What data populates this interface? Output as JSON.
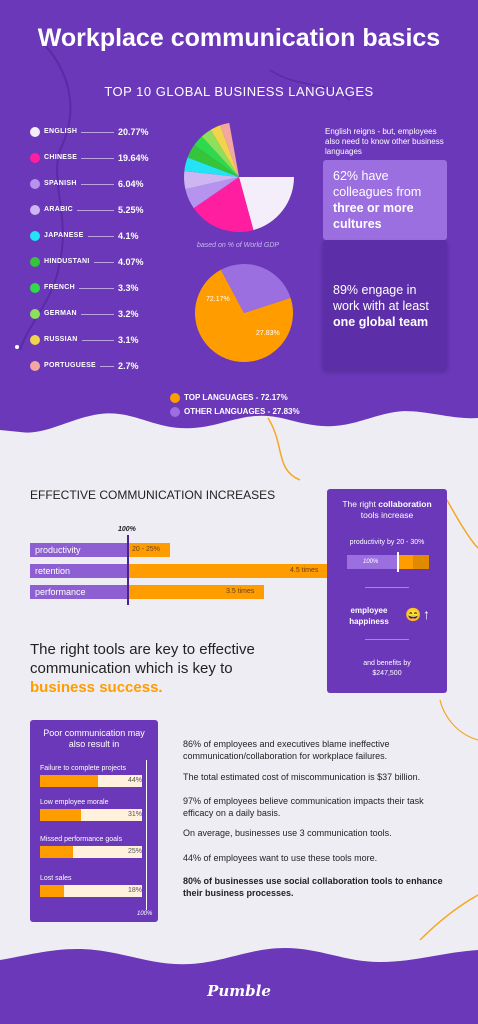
{
  "header": {
    "title": "Workplace communication basics",
    "subtitle": "TOP 10 GLOBAL BUSINESS LANGUAGES"
  },
  "colors": {
    "purple": "#6a38b9",
    "light_purple": "#9b6fe0",
    "orange": "#ff9d00",
    "background": "#efedf4"
  },
  "languages": [
    {
      "name": "ENGLISH",
      "value": "20.77%",
      "pct": 20.77,
      "color": "#f3eef9"
    },
    {
      "name": "CHINESE",
      "value": "19.64%",
      "pct": 19.64,
      "color": "#ff1ea0"
    },
    {
      "name": "SPANISH",
      "value": "6.04%",
      "pct": 6.04,
      "color": "#b693ef"
    },
    {
      "name": "ARABIC",
      "value": "5.25%",
      "pct": 5.25,
      "color": "#cdb6f2"
    },
    {
      "name": "JAPANESE",
      "value": "4.1%",
      "pct": 4.1,
      "color": "#24e3f4"
    },
    {
      "name": "HINDUSTANI",
      "value": "4.07%",
      "pct": 4.07,
      "color": "#35c43a"
    },
    {
      "name": "FRENCH",
      "value": "3.3%",
      "pct": 3.3,
      "color": "#2fd94c"
    },
    {
      "name": "GERMAN",
      "value": "3.2%",
      "pct": 3.2,
      "color": "#8ee05a"
    },
    {
      "name": "RUSSIAN",
      "value": "3.1%",
      "pct": 3.1,
      "color": "#f1d44c"
    },
    {
      "name": "PORTUGUESE",
      "value": "2.7%",
      "pct": 2.7,
      "color": "#f4a7a0"
    }
  ],
  "pie_caption": "based on % of World GDP",
  "pie2": {
    "top_label": "72.17%",
    "other_label": "27.83%",
    "legend_top": "TOP LANGUAGES - 72.17%",
    "legend_other": "OTHER LANGUAGES - 27.83%"
  },
  "english_note": "English reigns - but, employees also need to know other business languages",
  "stat1": {
    "pre": "62% have colleagues from ",
    "bold": "three or more cultures"
  },
  "stat2": {
    "pre": "89% engage in work with at least ",
    "bold": "one global team"
  },
  "effective": {
    "heading": "EFFECTIVE COMMUNICATION INCREASES",
    "marker": "100%",
    "rows": [
      {
        "label": "productivity",
        "value_text": "20 - 25%",
        "value": 1.225
      },
      {
        "label": "retention",
        "value_text": "4.5 times",
        "value": 4.5
      },
      {
        "label": "performance",
        "value_text": "3.5 times",
        "value": 3.5
      }
    ]
  },
  "collab": {
    "title_pre": "The right ",
    "title_bold": "collaboration",
    "title_line2": "tools increase",
    "productivity_label": "productivity by 20 - 30%",
    "bar_marker": "100%",
    "happiness": "employee happiness",
    "emoji": "😄",
    "arrow": "↑",
    "benefits": "and benefits by $247,500"
  },
  "tagline": {
    "pre": "The right tools are key to effective communication which is key to ",
    "highlight": "business success."
  },
  "poor": {
    "title": "Poor communication may also result in",
    "rows": [
      {
        "label": "Failure to complete projects",
        "value_text": "44%",
        "pct": 44
      },
      {
        "label": "Low employee morale",
        "value_text": "31%",
        "pct": 31
      },
      {
        "label": "Missed performance goals",
        "value_text": "25%",
        "pct": 25
      },
      {
        "label": "Lost sales",
        "value_text": "18%",
        "pct": 18
      }
    ],
    "axis_max": "100%"
  },
  "facts": [
    "86% of employees and executives blame ineffective communication/collaboration for workplace failures.",
    "The total estimated cost of miscommunication is $37 billion.",
    "97% of employees believe communication impacts their task efficacy on a daily basis.",
    "On average, businesses use 3 communication tools.",
    "44% of employees want to use these tools more."
  ],
  "fact_bold": "80% of businesses use social collaboration tools to enhance their business processes.",
  "footer": {
    "logo": "Pumble"
  },
  "chart_data": [
    {
      "type": "pie",
      "title": "TOP 10 GLOBAL BUSINESS LANGUAGES",
      "caption": "based on % of World GDP",
      "categories": [
        "ENGLISH",
        "CHINESE",
        "SPANISH",
        "ARABIC",
        "JAPANESE",
        "HINDUSTANI",
        "FRENCH",
        "GERMAN",
        "RUSSIAN",
        "PORTUGUESE"
      ],
      "values": [
        20.77,
        19.64,
        6.04,
        5.25,
        4.1,
        4.07,
        3.3,
        3.2,
        3.1,
        2.7
      ]
    },
    {
      "type": "pie",
      "categories": [
        "TOP LANGUAGES",
        "OTHER LANGUAGES"
      ],
      "values": [
        72.17,
        27.83
      ]
    },
    {
      "type": "bar",
      "title": "EFFECTIVE COMMUNICATION INCREASES",
      "categories": [
        "productivity",
        "retention",
        "performance"
      ],
      "values": [
        1.225,
        4.5,
        3.5
      ],
      "value_labels": [
        "20 - 25%",
        "4.5 times",
        "3.5 times"
      ],
      "reference": "100%"
    },
    {
      "type": "bar",
      "title": "Poor communication may also result in",
      "categories": [
        "Failure to complete projects",
        "Low employee morale",
        "Missed performance goals",
        "Lost sales"
      ],
      "values": [
        44,
        31,
        25,
        18
      ],
      "ylim": [
        0,
        100
      ]
    }
  ]
}
